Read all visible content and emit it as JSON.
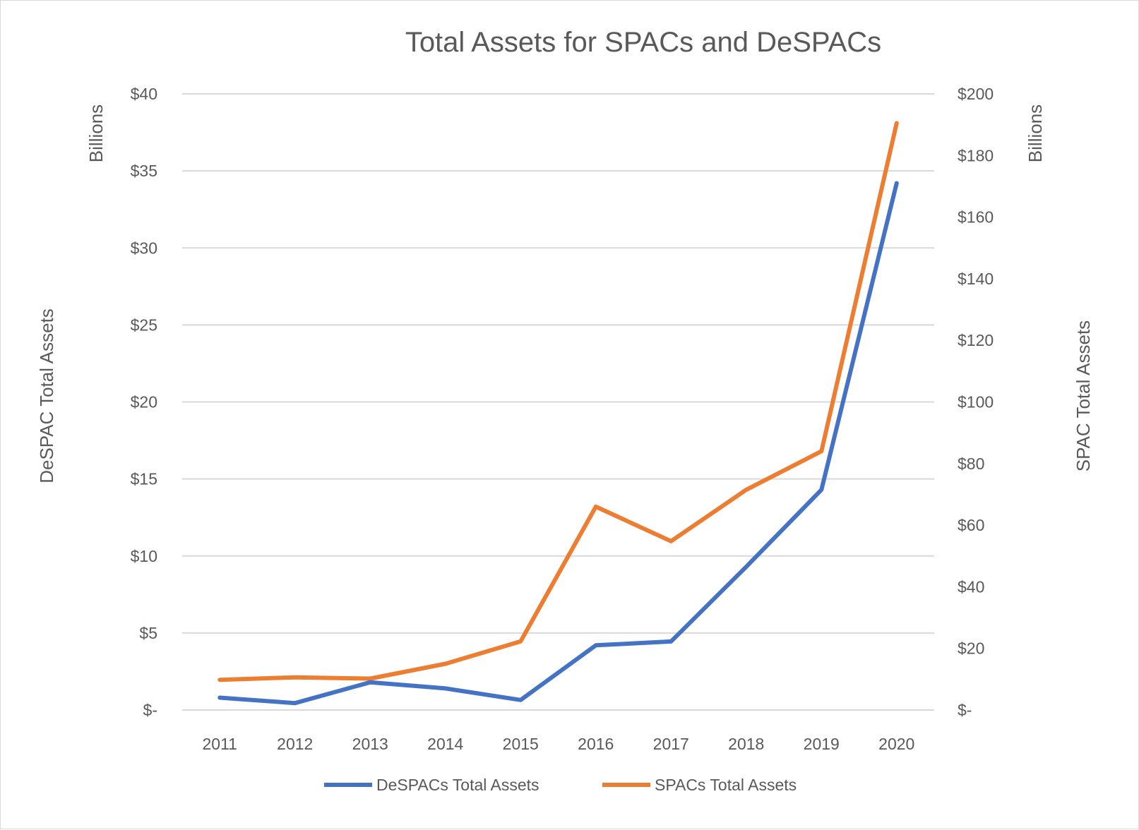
{
  "chart_data": {
    "type": "line",
    "title": "Total Assets for SPACs and DeSPACs",
    "categories": [
      "2011",
      "2012",
      "2013",
      "2014",
      "2015",
      "2016",
      "2017",
      "2018",
      "2019",
      "2020"
    ],
    "series": [
      {
        "name": "DeSPACs Total Assets",
        "axis": "left",
        "color": "#4472C4",
        "values": [
          0.8,
          0.45,
          1.8,
          1.4,
          0.65,
          4.2,
          4.45,
          9.3,
          14.3,
          34.2
        ]
      },
      {
        "name": "SPACs Total Assets",
        "axis": "right",
        "color": "#ED7D31",
        "values": [
          9.8,
          10.6,
          10.2,
          15.0,
          22.3,
          66.0,
          54.8,
          71.5,
          84.0,
          190.5
        ]
      }
    ],
    "y_left": {
      "label": "DeSPAC Total Assets",
      "units_label": "Billions",
      "range": [
        0,
        40
      ],
      "ticks": [
        0,
        5,
        10,
        15,
        20,
        25,
        30,
        35,
        40
      ],
      "tick_labels": [
        "$-",
        "$5",
        "$10",
        "$15",
        "$20",
        "$25",
        "$30",
        "$35",
        "$40"
      ]
    },
    "y_right": {
      "label": "SPAC Total Assets",
      "units_label": "Billions",
      "range": [
        0,
        200
      ],
      "ticks": [
        0,
        20,
        40,
        60,
        80,
        100,
        120,
        140,
        160,
        180,
        200
      ],
      "tick_labels": [
        "$-",
        "$20",
        "$40",
        "$60",
        "$80",
        "$100",
        "$120",
        "$140",
        "$160",
        "$180",
        "$200"
      ]
    },
    "grid": true,
    "legend_position": "bottom"
  }
}
